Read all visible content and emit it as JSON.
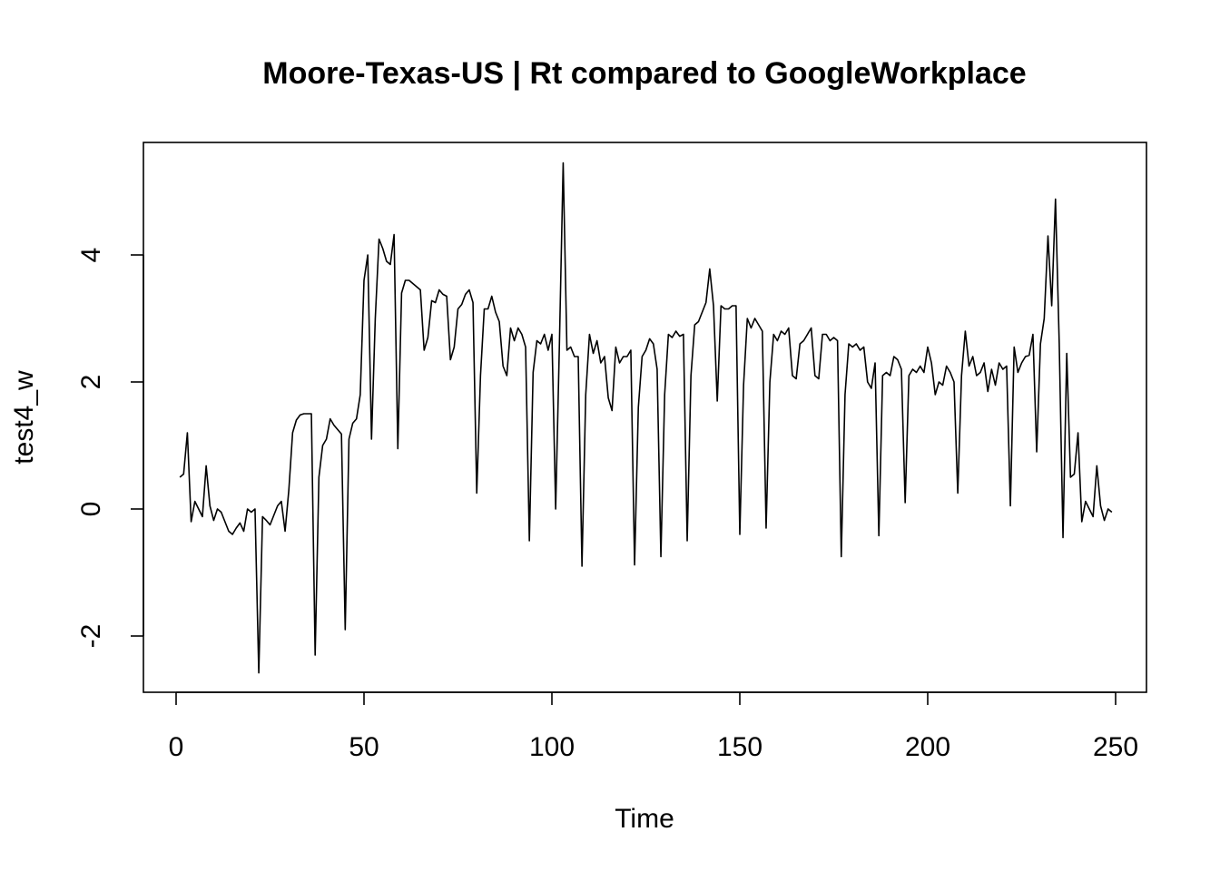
{
  "chart_data": {
    "type": "line",
    "title": "Moore-Texas-US | Rt compared to GoogleWorkplace",
    "xlabel": "Time",
    "ylabel": "test4_w",
    "xlim": [
      1,
      248
    ],
    "ylim": [
      -2.6,
      5.5
    ],
    "x_ticks": [
      0,
      50,
      100,
      150,
      200,
      250
    ],
    "y_ticks": [
      -2,
      0,
      2,
      4
    ],
    "grid": false,
    "legend": "none",
    "x_start": 1,
    "series": [
      {
        "values": [
          0.5,
          0.55,
          1.2,
          -0.2,
          0.12,
          0.0,
          -0.12,
          0.68,
          0.05,
          -0.18,
          0.0,
          -0.05,
          -0.2,
          -0.35,
          -0.4,
          -0.3,
          -0.22,
          -0.35,
          0.0,
          -0.05,
          0.0,
          -2.58,
          -0.12,
          -0.18,
          -0.25,
          -0.1,
          0.05,
          0.12,
          -0.35,
          0.3,
          1.2,
          1.4,
          1.48,
          1.5,
          1.5,
          1.5,
          -2.3,
          0.5,
          1.0,
          1.1,
          1.42,
          1.32,
          1.25,
          1.18,
          -1.9,
          1.1,
          1.35,
          1.42,
          1.8,
          3.6,
          4.0,
          1.1,
          3.0,
          4.25,
          4.1,
          3.9,
          3.85,
          4.32,
          0.95,
          3.4,
          3.6,
          3.6,
          3.55,
          3.5,
          3.45,
          2.5,
          2.7,
          3.28,
          3.25,
          3.45,
          3.38,
          3.35,
          2.35,
          2.55,
          3.15,
          3.22,
          3.38,
          3.45,
          3.25,
          0.25,
          2.1,
          3.15,
          3.15,
          3.35,
          3.1,
          2.95,
          2.25,
          2.1,
          2.85,
          2.65,
          2.85,
          2.75,
          2.55,
          -0.5,
          2.15,
          2.65,
          2.6,
          2.75,
          2.5,
          2.75,
          0.0,
          2.6,
          5.45,
          2.5,
          2.55,
          2.4,
          2.4,
          -0.9,
          1.8,
          2.75,
          2.45,
          2.65,
          2.3,
          2.4,
          1.75,
          1.55,
          2.55,
          2.3,
          2.4,
          2.4,
          2.5,
          -0.88,
          1.6,
          2.4,
          2.5,
          2.68,
          2.6,
          2.2,
          -0.75,
          1.8,
          2.75,
          2.7,
          2.8,
          2.72,
          2.75,
          -0.5,
          2.1,
          2.9,
          2.95,
          3.1,
          3.25,
          3.78,
          3.2,
          1.7,
          3.2,
          3.15,
          3.15,
          3.2,
          3.2,
          -0.4,
          1.95,
          3.0,
          2.85,
          3.0,
          2.9,
          2.8,
          -0.3,
          2.0,
          2.75,
          2.65,
          2.8,
          2.75,
          2.85,
          2.1,
          2.05,
          2.6,
          2.65,
          2.75,
          2.85,
          2.1,
          2.05,
          2.75,
          2.75,
          2.65,
          2.7,
          2.65,
          -0.75,
          1.8,
          2.6,
          2.55,
          2.6,
          2.5,
          2.55,
          2.0,
          1.9,
          2.3,
          -0.42,
          2.1,
          2.15,
          2.1,
          2.4,
          2.35,
          2.2,
          0.1,
          2.1,
          2.2,
          2.15,
          2.25,
          2.15,
          2.55,
          2.3,
          1.8,
          2.0,
          1.95,
          2.25,
          2.15,
          2.0,
          0.25,
          2.1,
          2.8,
          2.25,
          2.4,
          2.1,
          2.15,
          2.3,
          1.85,
          2.2,
          1.95,
          2.3,
          2.2,
          2.25,
          0.05,
          2.55,
          2.15,
          2.3,
          2.4,
          2.42,
          2.75,
          0.9,
          2.6,
          3.0,
          4.3,
          3.2,
          4.88,
          2.6,
          -0.45,
          2.45,
          0.5,
          0.55,
          1.2,
          -0.2,
          0.12,
          0.0,
          -0.12,
          0.68,
          0.05,
          -0.18,
          0.0,
          -0.05
        ]
      }
    ]
  }
}
